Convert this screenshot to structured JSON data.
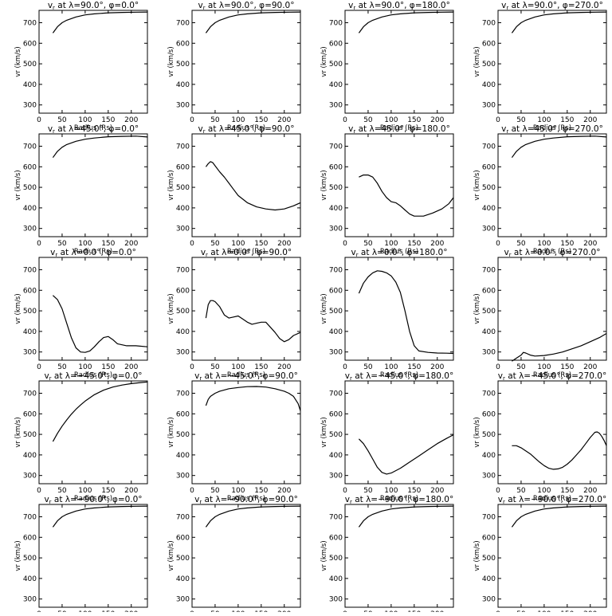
{
  "figure": {
    "xlabel": "Radius (Rs)",
    "ylabel": "vr (km/s)",
    "xlim": [
      0,
      235
    ],
    "ylim": [
      260,
      760
    ],
    "xticks": [
      0,
      50,
      100,
      150,
      200
    ],
    "yticks": [
      300,
      400,
      500,
      600,
      700
    ]
  },
  "chart_data": [
    {
      "type": "line",
      "title": "vr at λ=90.0°, φ=0.0°",
      "lat": "90.0",
      "phi": "0.0",
      "x": [
        30,
        40,
        50,
        60,
        80,
        100,
        120,
        150,
        180,
        210,
        235
      ],
      "y": [
        650,
        680,
        700,
        712,
        728,
        738,
        743,
        748,
        750,
        751,
        752
      ]
    },
    {
      "type": "line",
      "title": "vr at λ=90.0°, φ=90.0°",
      "lat": "90.0",
      "phi": "90.0",
      "x": [
        30,
        40,
        50,
        60,
        80,
        100,
        120,
        150,
        180,
        210,
        235
      ],
      "y": [
        650,
        680,
        700,
        712,
        728,
        738,
        743,
        748,
        750,
        751,
        752
      ]
    },
    {
      "type": "line",
      "title": "vr at λ=90.0°, φ=180.0°",
      "lat": "90.0",
      "phi": "180.0",
      "x": [
        30,
        40,
        50,
        60,
        80,
        100,
        120,
        150,
        180,
        210,
        235
      ],
      "y": [
        650,
        680,
        700,
        712,
        728,
        738,
        743,
        748,
        750,
        751,
        752
      ]
    },
    {
      "type": "line",
      "title": "vr at λ=90.0°, φ=270.0°",
      "lat": "90.0",
      "phi": "270.0",
      "x": [
        30,
        40,
        50,
        60,
        80,
        100,
        120,
        150,
        180,
        210,
        235
      ],
      "y": [
        650,
        680,
        700,
        712,
        728,
        738,
        743,
        748,
        750,
        751,
        752
      ]
    },
    {
      "type": "line",
      "title": "vr at λ=45.0°, φ=0.0°",
      "lat": "45.0",
      "phi": "0.0",
      "x": [
        30,
        40,
        50,
        60,
        80,
        100,
        120,
        150,
        180,
        210,
        235
      ],
      "y": [
        645,
        675,
        695,
        708,
        724,
        734,
        740,
        746,
        748,
        749,
        745
      ]
    },
    {
      "type": "line",
      "title": "vr at λ=45.0°, φ=90.0°",
      "lat": "45.0",
      "phi": "90.0",
      "x": [
        30,
        35,
        40,
        45,
        50,
        60,
        70,
        80,
        90,
        100,
        120,
        140,
        160,
        180,
        200,
        220,
        235
      ],
      "y": [
        600,
        615,
        625,
        620,
        605,
        575,
        550,
        520,
        490,
        460,
        425,
        405,
        395,
        390,
        395,
        410,
        425
      ]
    },
    {
      "type": "line",
      "title": "vr at λ=45.0°, φ=180.0°",
      "lat": "45.0",
      "phi": "180.0",
      "x": [
        30,
        40,
        50,
        60,
        70,
        80,
        90,
        100,
        110,
        120,
        130,
        140,
        150,
        170,
        190,
        210,
        225,
        235
      ],
      "y": [
        550,
        560,
        560,
        550,
        520,
        480,
        450,
        430,
        425,
        410,
        390,
        370,
        360,
        360,
        375,
        395,
        420,
        450
      ]
    },
    {
      "type": "line",
      "title": "vr at λ=45.0°, φ=270.0°",
      "lat": "45.0",
      "phi": "270.0",
      "x": [
        30,
        40,
        50,
        60,
        80,
        100,
        120,
        150,
        180,
        210,
        235
      ],
      "y": [
        645,
        675,
        695,
        708,
        724,
        734,
        740,
        746,
        748,
        749,
        745
      ]
    },
    {
      "type": "line",
      "title": "vr at λ=0.0°, φ=0.0°",
      "lat": "0.0",
      "phi": "0.0",
      "x": [
        30,
        40,
        50,
        60,
        70,
        80,
        90,
        100,
        110,
        120,
        130,
        140,
        150,
        160,
        170,
        190,
        210,
        235
      ],
      "y": [
        575,
        555,
        510,
        440,
        370,
        320,
        300,
        298,
        305,
        325,
        350,
        370,
        375,
        360,
        340,
        330,
        330,
        325
      ]
    },
    {
      "type": "line",
      "title": "vr at λ=0.0°, φ=90.0°",
      "lat": "0.0",
      "phi": "90.0",
      "x": [
        30,
        35,
        40,
        45,
        50,
        60,
        70,
        80,
        90,
        100,
        110,
        120,
        130,
        140,
        150,
        160,
        170,
        180,
        190,
        200,
        210,
        220,
        235
      ],
      "y": [
        465,
        530,
        550,
        550,
        545,
        520,
        480,
        465,
        470,
        475,
        460,
        445,
        435,
        440,
        445,
        445,
        420,
        395,
        365,
        350,
        360,
        380,
        395
      ]
    },
    {
      "type": "line",
      "title": "vr at λ=0.0°, φ=180.0°",
      "lat": "0.0",
      "phi": "180.0",
      "x": [
        30,
        40,
        50,
        60,
        70,
        80,
        90,
        100,
        110,
        120,
        130,
        140,
        150,
        160,
        180,
        200,
        220,
        235
      ],
      "y": [
        585,
        635,
        665,
        685,
        695,
        692,
        685,
        670,
        640,
        590,
        500,
        400,
        330,
        305,
        298,
        295,
        294,
        293
      ]
    },
    {
      "type": "line",
      "title": "vr at λ=0.0°, φ=270.0°",
      "lat": "0.0",
      "phi": "270.0",
      "x": [
        30,
        40,
        50,
        55,
        60,
        70,
        80,
        100,
        120,
        140,
        160,
        180,
        200,
        220,
        235
      ],
      "y": [
        255,
        270,
        285,
        298,
        295,
        285,
        280,
        283,
        290,
        300,
        315,
        330,
        350,
        370,
        390
      ]
    },
    {
      "type": "line",
      "title": "vr at λ=−45.0°, φ=0.0°",
      "lat": "−45.0",
      "phi": "0.0",
      "x": [
        30,
        40,
        50,
        60,
        70,
        80,
        90,
        100,
        120,
        140,
        160,
        180,
        200,
        220,
        235
      ],
      "y": [
        465,
        505,
        540,
        570,
        598,
        622,
        643,
        662,
        693,
        715,
        730,
        740,
        747,
        752,
        755
      ]
    },
    {
      "type": "line",
      "title": "vr at λ=−45.0°, φ=90.0°",
      "lat": "−45.0",
      "phi": "90.0",
      "x": [
        30,
        35,
        40,
        50,
        60,
        80,
        100,
        120,
        140,
        160,
        180,
        200,
        210,
        220,
        230,
        235
      ],
      "y": [
        640,
        670,
        685,
        700,
        710,
        722,
        728,
        732,
        733,
        730,
        722,
        710,
        700,
        685,
        650,
        615
      ]
    },
    {
      "type": "line",
      "title": "vr at λ=−45.0°, φ=180.0°",
      "lat": "−45.0",
      "phi": "180.0",
      "x": [
        30,
        40,
        50,
        60,
        70,
        80,
        90,
        100,
        120,
        140,
        160,
        180,
        200,
        220,
        235
      ],
      "y": [
        478,
        455,
        420,
        380,
        340,
        315,
        307,
        312,
        335,
        365,
        395,
        425,
        455,
        480,
        498
      ]
    },
    {
      "type": "line",
      "title": "vr at λ=−45.0°, φ=270.0°",
      "lat": "−45.0",
      "phi": "270.0",
      "x": [
        30,
        40,
        50,
        60,
        70,
        80,
        90,
        100,
        110,
        120,
        130,
        140,
        150,
        160,
        170,
        180,
        190,
        200,
        210,
        215,
        220,
        225,
        230,
        235
      ],
      "y": [
        445,
        445,
        435,
        420,
        405,
        385,
        365,
        348,
        335,
        330,
        332,
        340,
        355,
        375,
        400,
        425,
        455,
        485,
        510,
        512,
        505,
        490,
        470,
        445
      ]
    },
    {
      "type": "line",
      "title": "vr at λ=−90.0°, φ=0.0°",
      "lat": "−90.0",
      "phi": "0.0",
      "x": [
        30,
        40,
        50,
        60,
        80,
        100,
        120,
        150,
        180,
        210,
        235
      ],
      "y": [
        650,
        680,
        700,
        712,
        728,
        738,
        743,
        748,
        750,
        751,
        752
      ]
    },
    {
      "type": "line",
      "title": "vr at λ=−90.0°, φ=90.0°",
      "lat": "−90.0",
      "phi": "90.0",
      "x": [
        30,
        40,
        50,
        60,
        80,
        100,
        120,
        150,
        180,
        210,
        235
      ],
      "y": [
        650,
        680,
        700,
        712,
        728,
        738,
        743,
        748,
        750,
        751,
        752
      ]
    },
    {
      "type": "line",
      "title": "vr at λ=−90.0°, φ=180.0°",
      "lat": "−90.0",
      "phi": "180.0",
      "x": [
        30,
        40,
        50,
        60,
        80,
        100,
        120,
        150,
        180,
        210,
        235
      ],
      "y": [
        650,
        680,
        700,
        712,
        728,
        738,
        743,
        748,
        750,
        751,
        752
      ]
    },
    {
      "type": "line",
      "title": "vr at λ=−90.0°, φ=270.0°",
      "lat": "−90.0",
      "phi": "270.0",
      "x": [
        30,
        40,
        50,
        60,
        80,
        100,
        120,
        150,
        180,
        210,
        235
      ],
      "y": [
        650,
        680,
        700,
        712,
        728,
        738,
        743,
        748,
        750,
        751,
        752
      ]
    }
  ]
}
